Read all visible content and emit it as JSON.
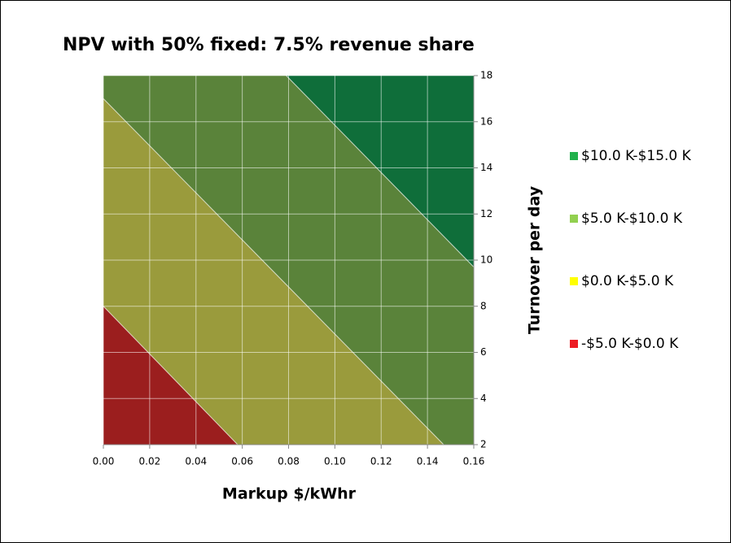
{
  "chart_data": {
    "type": "contour",
    "title": "NPV with 50% fixed: 7.5% revenue share",
    "x_label": "Markup $/kWhr",
    "y_label": "Turnover per day",
    "xlim": [
      0,
      0.16
    ],
    "ylim": [
      2,
      18
    ],
    "xticks": [
      {
        "value": 0,
        "label": "0.00"
      },
      {
        "value": 0.02,
        "label": "0.02"
      },
      {
        "value": 0.04,
        "label": "0.04"
      },
      {
        "value": 0.06,
        "label": "0.06"
      },
      {
        "value": 0.08,
        "label": "0.08"
      },
      {
        "value": 0.1,
        "label": "0.10"
      },
      {
        "value": 0.12,
        "label": "0.12"
      },
      {
        "value": 0.14,
        "label": "0.14"
      },
      {
        "value": 0.16,
        "label": "0.16"
      }
    ],
    "yticks": [
      2,
      4,
      6,
      8,
      10,
      12,
      14,
      16,
      18
    ],
    "grid": true,
    "legend": "right",
    "series": [
      {
        "name": "$10.0 K-$15.0 K",
        "color": "#22b14c",
        "fill": "#0f6e3a"
      },
      {
        "name": "$5.0 K-$10.0 K",
        "color": "#92d050",
        "fill": "#5a833a"
      },
      {
        "name": "$0.0 K-$5.0 K",
        "color": "#ffff00",
        "fill": "#9a9b3c"
      },
      {
        "name": "-$5.0 K-$0.0 K",
        "color": "#ed1c24",
        "fill": "#9b1e1e"
      }
    ],
    "contours": [
      {
        "level": 10,
        "x": [
          0.079,
          0.16
        ],
        "y": [
          18,
          9.7
        ]
      },
      {
        "level": 5,
        "x": [
          0,
          0.147
        ],
        "y": [
          17,
          2
        ]
      },
      {
        "level": 0,
        "x": [
          0,
          0.058
        ],
        "y": [
          8,
          2
        ]
      }
    ]
  }
}
